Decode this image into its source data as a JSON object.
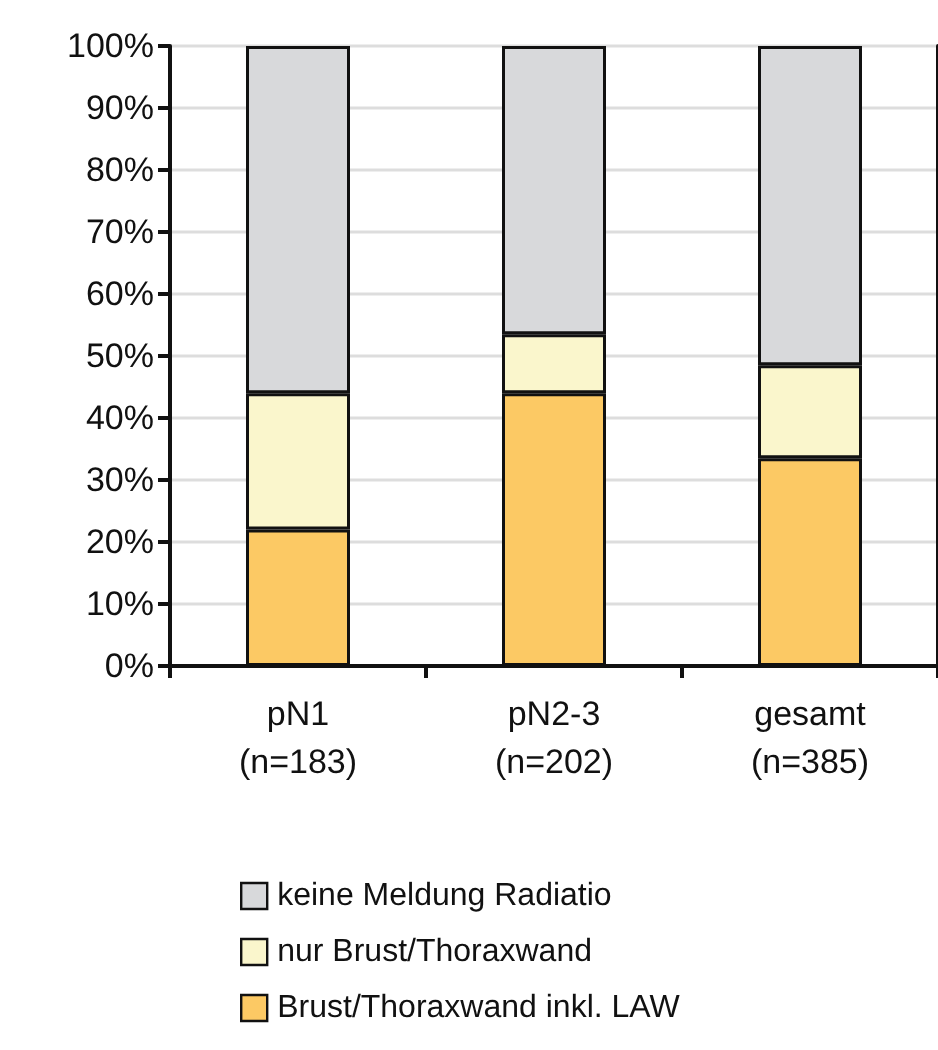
{
  "chart_data": {
    "type": "bar",
    "stacked": true,
    "categories": [
      "pN1\n(n=183)",
      "pN2-3\n(n=202)",
      "gesamt\n(n=385)"
    ],
    "series": [
      {
        "name": "Brust/Thoraxwand inkl. LAW",
        "color": "#fcc964",
        "values": [
          22,
          44,
          33.5
        ]
      },
      {
        "name": "nur Brust/Thoraxwand",
        "color": "#faf6cc",
        "values": [
          22,
          9.5,
          15
        ]
      },
      {
        "name": "keine Meldung Radiatio",
        "color": "#d8d9db",
        "values": [
          56,
          46.5,
          51.5
        ]
      }
    ],
    "ylim": [
      0,
      100
    ],
    "yticks": [
      {
        "value": 0,
        "label": "0%"
      },
      {
        "value": 10,
        "label": "10%"
      },
      {
        "value": 20,
        "label": "20%"
      },
      {
        "value": 30,
        "label": "30%"
      },
      {
        "value": 40,
        "label": "40%"
      },
      {
        "value": 50,
        "label": "50%"
      },
      {
        "value": 60,
        "label": "60%"
      },
      {
        "value": 70,
        "label": "70%"
      },
      {
        "value": 80,
        "label": "80%"
      },
      {
        "value": 90,
        "label": "90%"
      },
      {
        "value": 100,
        "label": "100%"
      }
    ],
    "grid": "y",
    "legend": "bottom"
  }
}
